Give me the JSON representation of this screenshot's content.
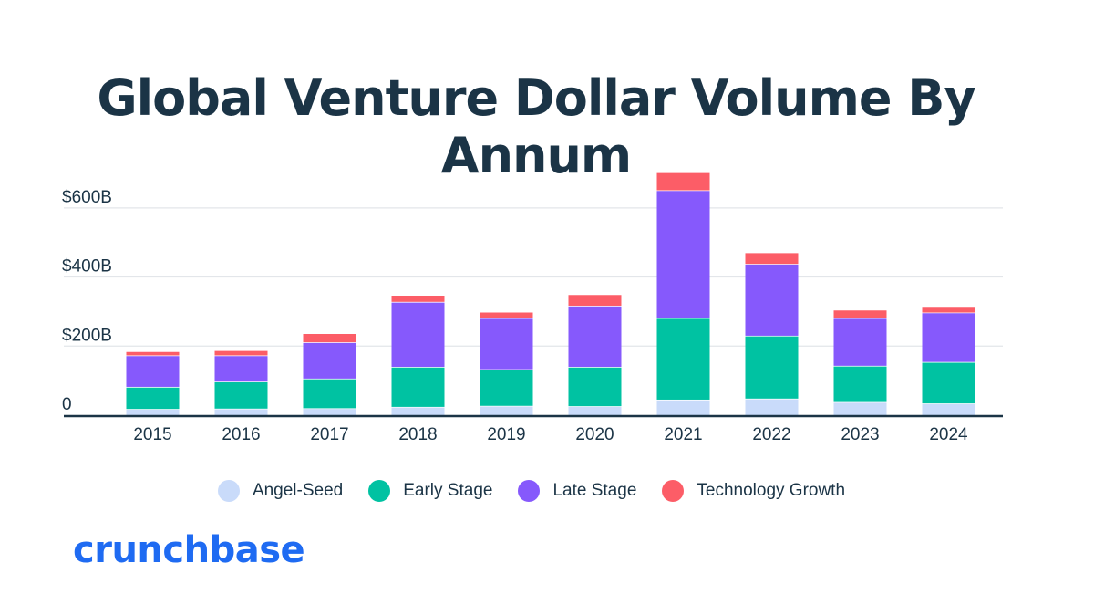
{
  "title": "Global Venture Dollar Volume By Annum",
  "brand": "crunchbase",
  "colors": {
    "angel_seed": "#c9dbfa",
    "early_stage": "#00c2a2",
    "late_stage": "#8659fc",
    "technology_growth": "#fc5d67",
    "axis": "#1b3446",
    "grid": "#e3e6ea",
    "brand": "#1f6bf2"
  },
  "legend": [
    {
      "label": "Angel-Seed",
      "color_key": "angel_seed"
    },
    {
      "label": "Early Stage",
      "color_key": "early_stage"
    },
    {
      "label": "Late Stage",
      "color_key": "late_stage"
    },
    {
      "label": "Technology Growth",
      "color_key": "technology_growth"
    }
  ],
  "chart_data": {
    "type": "bar",
    "stacked": true,
    "title": "Global Venture Dollar Volume By Annum",
    "xlabel": "",
    "ylabel": "",
    "ylim": [
      0,
      700
    ],
    "y_ticks": [
      {
        "value": 0,
        "label": "0"
      },
      {
        "value": 200,
        "label": "$200B"
      },
      {
        "value": 400,
        "label": "$400B"
      },
      {
        "value": 600,
        "label": "$600B"
      }
    ],
    "grid": true,
    "legend_position": "bottom",
    "categories": [
      "2015",
      "2016",
      "2017",
      "2018",
      "2019",
      "2020",
      "2021",
      "2022",
      "2023",
      "2024"
    ],
    "series": [
      {
        "name": "Angel-Seed",
        "color_key": "angel_seed",
        "values": [
          18,
          19,
          20,
          24,
          27,
          26,
          45,
          48,
          38,
          34
        ]
      },
      {
        "name": "Early Stage",
        "color_key": "early_stage",
        "values": [
          64,
          78,
          86,
          116,
          106,
          114,
          236,
          182,
          105,
          120
        ]
      },
      {
        "name": "Late Stage",
        "color_key": "late_stage",
        "values": [
          91,
          76,
          105,
          188,
          148,
          177,
          370,
          208,
          138,
          143
        ]
      },
      {
        "name": "Technology Growth",
        "color_key": "technology_growth",
        "values": [
          12,
          15,
          26,
          20,
          18,
          33,
          52,
          33,
          24,
          16
        ]
      }
    ]
  }
}
